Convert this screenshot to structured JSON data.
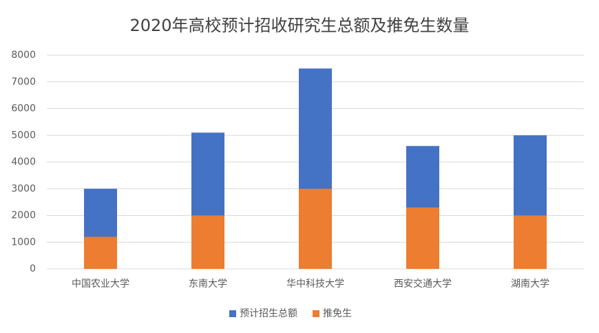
{
  "chart_data": {
    "type": "bar",
    "title": "2020年高校预计招收研究生总额及推免生数量",
    "categories": [
      "中国农业大学",
      "东南大学",
      "华中科技大学",
      "西安交通大学",
      "湖南大学"
    ],
    "series": [
      {
        "name": "预计招生总额",
        "color": "#4472c4",
        "values": [
          3000,
          5100,
          7500,
          4600,
          5000
        ]
      },
      {
        "name": "推免生",
        "color": "#ed7d31",
        "values": [
          1200,
          2000,
          3000,
          2300,
          2000
        ]
      }
    ],
    "ylim": [
      0,
      8000
    ],
    "yticks": [
      0,
      1000,
      2000,
      3000,
      4000,
      5000,
      6000,
      7000,
      8000
    ],
    "grid": true,
    "legend": "bottom"
  }
}
